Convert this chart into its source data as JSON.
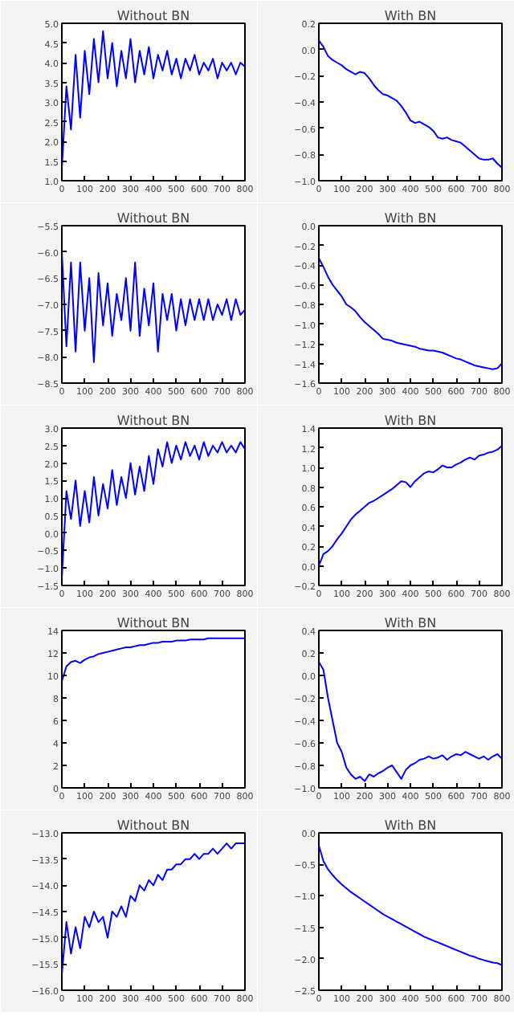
{
  "chart_data": [
    {
      "type": "line",
      "title": "Without BN",
      "color": "#0000ff",
      "xlim": [
        0,
        800
      ],
      "xticks": [
        0,
        100,
        200,
        300,
        400,
        500,
        600,
        700,
        800
      ],
      "ylim": [
        1.0,
        5.0
      ],
      "yticks": [
        {
          "value": 1.0,
          "label": "1.0"
        },
        1.5,
        {
          "value": 2.0,
          "label": "2.0"
        },
        2.5,
        {
          "value": 3.0,
          "label": "3.0"
        },
        3.5,
        {
          "value": 4.0,
          "label": "4.0"
        },
        4.5,
        {
          "value": 5.0,
          "label": "5.0"
        }
      ],
      "x": [
        0,
        20,
        40,
        60,
        80,
        100,
        120,
        140,
        160,
        180,
        200,
        220,
        240,
        260,
        280,
        300,
        320,
        340,
        360,
        380,
        400,
        420,
        440,
        460,
        480,
        500,
        520,
        540,
        560,
        580,
        600,
        620,
        640,
        660,
        680,
        700,
        720,
        740,
        760,
        780,
        800
      ],
      "values": [
        1.3,
        3.4,
        2.3,
        4.2,
        2.6,
        4.3,
        3.2,
        4.6,
        3.5,
        4.8,
        3.6,
        4.5,
        3.4,
        4.3,
        3.6,
        4.6,
        3.5,
        4.3,
        3.7,
        4.4,
        3.6,
        4.2,
        3.8,
        4.3,
        3.7,
        4.1,
        3.6,
        4.1,
        3.8,
        4.2,
        3.7,
        4.0,
        3.8,
        4.1,
        3.6,
        4.0,
        3.8,
        4.0,
        3.7,
        4.0,
        3.9
      ]
    },
    {
      "type": "line",
      "title": "With BN",
      "color": "#0000ff",
      "xlim": [
        0,
        800
      ],
      "xticks": [
        0,
        100,
        200,
        300,
        400,
        500,
        600,
        700,
        800
      ],
      "ylim": [
        -1.0,
        0.2
      ],
      "yticks": [
        {
          "value": -1.0,
          "label": "−1.0"
        },
        {
          "value": -0.8,
          "label": "−0.8"
        },
        {
          "value": -0.6,
          "label": "−0.6"
        },
        {
          "value": -0.4,
          "label": "−0.4"
        },
        {
          "value": -0.2,
          "label": "−0.2"
        },
        {
          "value": 0.0,
          "label": "0.0"
        },
        0.2
      ],
      "x": [
        0,
        20,
        40,
        60,
        80,
        100,
        120,
        140,
        160,
        180,
        200,
        220,
        240,
        260,
        280,
        300,
        320,
        340,
        360,
        380,
        400,
        420,
        440,
        460,
        480,
        500,
        520,
        540,
        560,
        580,
        600,
        620,
        640,
        660,
        680,
        700,
        720,
        740,
        760,
        780,
        800
      ],
      "values": [
        0.07,
        0.02,
        -0.05,
        -0.08,
        -0.1,
        -0.12,
        -0.15,
        -0.17,
        -0.19,
        -0.17,
        -0.18,
        -0.22,
        -0.27,
        -0.31,
        -0.34,
        -0.35,
        -0.37,
        -0.39,
        -0.43,
        -0.48,
        -0.54,
        -0.56,
        -0.55,
        -0.57,
        -0.59,
        -0.62,
        -0.67,
        -0.68,
        -0.67,
        -0.69,
        -0.7,
        -0.71,
        -0.74,
        -0.77,
        -0.8,
        -0.83,
        -0.84,
        -0.84,
        -0.83,
        -0.87,
        -0.9
      ]
    },
    {
      "type": "line",
      "title": "Without BN",
      "color": "#0000ff",
      "xlim": [
        0,
        800
      ],
      "xticks": [
        0,
        100,
        200,
        300,
        400,
        500,
        600,
        700,
        800
      ],
      "ylim": [
        -8.5,
        -5.5
      ],
      "yticks": [
        {
          "value": -8.5,
          "label": "−8.5"
        },
        {
          "value": -8.0,
          "label": "−8.0"
        },
        {
          "value": -7.5,
          "label": "−7.5"
        },
        {
          "value": -7.0,
          "label": "−7.0"
        },
        {
          "value": -6.5,
          "label": "−6.5"
        },
        {
          "value": -6.0,
          "label": "−6.0"
        },
        {
          "value": -5.5,
          "label": "−5.5"
        }
      ],
      "x": [
        0,
        20,
        40,
        60,
        80,
        100,
        120,
        140,
        160,
        180,
        200,
        220,
        240,
        260,
        280,
        300,
        320,
        340,
        360,
        380,
        400,
        420,
        440,
        460,
        480,
        500,
        520,
        540,
        560,
        580,
        600,
        620,
        640,
        660,
        680,
        700,
        720,
        740,
        760,
        780,
        800
      ],
      "values": [
        -6.0,
        -7.8,
        -6.2,
        -7.9,
        -6.2,
        -7.5,
        -6.5,
        -8.1,
        -6.4,
        -7.4,
        -6.6,
        -7.6,
        -6.8,
        -7.3,
        -6.5,
        -7.5,
        -6.2,
        -7.6,
        -6.7,
        -7.4,
        -6.6,
        -7.9,
        -6.8,
        -7.3,
        -6.8,
        -7.5,
        -6.9,
        -7.4,
        -6.9,
        -7.3,
        -6.9,
        -7.3,
        -6.9,
        -7.3,
        -7.0,
        -7.2,
        -6.9,
        -7.3,
        -6.9,
        -7.2,
        -7.1
      ]
    },
    {
      "type": "line",
      "title": "With BN",
      "color": "#0000ff",
      "xlim": [
        0,
        800
      ],
      "xticks": [
        0,
        100,
        200,
        300,
        400,
        500,
        600,
        700,
        800
      ],
      "ylim": [
        -1.6,
        0.0
      ],
      "yticks": [
        {
          "value": -1.6,
          "label": "−1.6"
        },
        {
          "value": -1.4,
          "label": "−1.4"
        },
        {
          "value": -1.2,
          "label": "−1.2"
        },
        {
          "value": -1.0,
          "label": "−1.0"
        },
        {
          "value": -0.8,
          "label": "−0.8"
        },
        {
          "value": -0.6,
          "label": "−0.6"
        },
        {
          "value": -0.4,
          "label": "−0.4"
        },
        {
          "value": -0.2,
          "label": "−0.2"
        },
        {
          "value": 0.0,
          "label": "0.0"
        }
      ],
      "x": [
        0,
        20,
        40,
        60,
        80,
        100,
        120,
        140,
        160,
        180,
        200,
        220,
        240,
        260,
        280,
        300,
        320,
        340,
        360,
        380,
        400,
        420,
        440,
        460,
        480,
        500,
        520,
        540,
        560,
        580,
        600,
        620,
        640,
        660,
        680,
        700,
        720,
        740,
        760,
        780,
        800
      ],
      "values": [
        -0.33,
        -0.42,
        -0.52,
        -0.6,
        -0.66,
        -0.72,
        -0.8,
        -0.83,
        -0.87,
        -0.93,
        -0.98,
        -1.02,
        -1.06,
        -1.1,
        -1.15,
        -1.16,
        -1.17,
        -1.19,
        -1.2,
        -1.21,
        -1.22,
        -1.23,
        -1.25,
        -1.26,
        -1.27,
        -1.27,
        -1.28,
        -1.29,
        -1.31,
        -1.33,
        -1.35,
        -1.36,
        -1.38,
        -1.4,
        -1.42,
        -1.43,
        -1.44,
        -1.45,
        -1.46,
        -1.45,
        -1.4
      ]
    },
    {
      "type": "line",
      "title": "Without BN",
      "color": "#0000ff",
      "xlim": [
        0,
        800
      ],
      "xticks": [
        0,
        100,
        200,
        300,
        400,
        500,
        600,
        700,
        800
      ],
      "ylim": [
        -1.5,
        3.0
      ],
      "yticks": [
        {
          "value": -1.5,
          "label": "−1.5"
        },
        {
          "value": -1.0,
          "label": "−1.0"
        },
        {
          "value": -0.5,
          "label": "−0.5"
        },
        {
          "value": 0.0,
          "label": "0.0"
        },
        0.5,
        {
          "value": 1.0,
          "label": "1.0"
        },
        1.5,
        {
          "value": 2.0,
          "label": "2.0"
        },
        2.5,
        {
          "value": 3.0,
          "label": "3.0"
        }
      ],
      "x": [
        0,
        20,
        40,
        60,
        80,
        100,
        120,
        140,
        160,
        180,
        200,
        220,
        240,
        260,
        280,
        300,
        320,
        340,
        360,
        380,
        400,
        420,
        440,
        460,
        480,
        500,
        520,
        540,
        560,
        580,
        600,
        620,
        640,
        660,
        680,
        700,
        720,
        740,
        760,
        780,
        800
      ],
      "values": [
        -1.3,
        1.2,
        0.4,
        1.5,
        0.2,
        1.2,
        0.3,
        1.6,
        0.5,
        1.4,
        0.7,
        1.8,
        0.8,
        1.6,
        1.0,
        2.0,
        1.1,
        1.9,
        1.2,
        2.2,
        1.4,
        2.4,
        1.9,
        2.6,
        2.0,
        2.5,
        2.1,
        2.6,
        2.2,
        2.5,
        2.1,
        2.6,
        2.2,
        2.5,
        2.3,
        2.6,
        2.3,
        2.5,
        2.3,
        2.6,
        2.4
      ]
    },
    {
      "type": "line",
      "title": "With BN",
      "color": "#0000ff",
      "xlim": [
        0,
        800
      ],
      "xticks": [
        0,
        100,
        200,
        300,
        400,
        500,
        600,
        700,
        800
      ],
      "ylim": [
        -0.2,
        1.4
      ],
      "yticks": [
        {
          "value": -0.2,
          "label": "−0.2"
        },
        {
          "value": 0.0,
          "label": "0.0"
        },
        0.2,
        0.4,
        0.6,
        0.8,
        {
          "value": 1.0,
          "label": "1.0"
        },
        1.2,
        1.4
      ],
      "x": [
        0,
        20,
        40,
        60,
        80,
        100,
        120,
        140,
        160,
        180,
        200,
        220,
        240,
        260,
        280,
        300,
        320,
        340,
        360,
        380,
        400,
        420,
        440,
        460,
        480,
        500,
        520,
        540,
        560,
        580,
        600,
        620,
        640,
        660,
        680,
        700,
        720,
        740,
        760,
        780,
        800
      ],
      "values": [
        0.0,
        0.12,
        0.15,
        0.2,
        0.27,
        0.33,
        0.4,
        0.47,
        0.52,
        0.56,
        0.6,
        0.64,
        0.66,
        0.69,
        0.72,
        0.75,
        0.78,
        0.82,
        0.86,
        0.85,
        0.8,
        0.86,
        0.9,
        0.94,
        0.96,
        0.95,
        0.98,
        1.02,
        1.0,
        1.0,
        1.03,
        1.05,
        1.08,
        1.1,
        1.08,
        1.12,
        1.13,
        1.15,
        1.16,
        1.18,
        1.22
      ]
    },
    {
      "type": "line",
      "title": "Without BN",
      "color": "#0000ff",
      "xlim": [
        0,
        800
      ],
      "xticks": [
        0,
        100,
        200,
        300,
        400,
        500,
        600,
        700,
        800
      ],
      "ylim": [
        0,
        14
      ],
      "yticks": [
        0,
        2,
        4,
        6,
        8,
        10,
        12,
        14
      ],
      "x": [
        0,
        20,
        40,
        60,
        80,
        100,
        120,
        140,
        160,
        180,
        200,
        220,
        240,
        260,
        280,
        300,
        320,
        340,
        360,
        380,
        400,
        420,
        440,
        460,
        480,
        500,
        520,
        540,
        560,
        580,
        600,
        620,
        640,
        660,
        680,
        700,
        720,
        740,
        760,
        780,
        800
      ],
      "values": [
        9.5,
        10.8,
        11.2,
        11.3,
        11.1,
        11.4,
        11.6,
        11.7,
        11.9,
        12.0,
        12.1,
        12.2,
        12.3,
        12.4,
        12.5,
        12.5,
        12.6,
        12.7,
        12.7,
        12.8,
        12.9,
        12.9,
        13.0,
        13.0,
        13.0,
        13.1,
        13.1,
        13.1,
        13.2,
        13.2,
        13.2,
        13.2,
        13.3,
        13.3,
        13.3,
        13.3,
        13.3,
        13.3,
        13.3,
        13.3,
        13.3
      ]
    },
    {
      "type": "line",
      "title": "With BN",
      "color": "#0000ff",
      "xlim": [
        0,
        800
      ],
      "xticks": [
        0,
        100,
        200,
        300,
        400,
        500,
        600,
        700,
        800
      ],
      "ylim": [
        -1.0,
        0.4
      ],
      "yticks": [
        {
          "value": -1.0,
          "label": "−1.0"
        },
        {
          "value": -0.8,
          "label": "−0.8"
        },
        {
          "value": -0.6,
          "label": "−0.6"
        },
        {
          "value": -0.4,
          "label": "−0.4"
        },
        {
          "value": -0.2,
          "label": "−0.2"
        },
        {
          "value": 0.0,
          "label": "0.0"
        },
        0.2,
        0.4
      ],
      "x": [
        0,
        20,
        40,
        60,
        80,
        100,
        120,
        140,
        160,
        180,
        200,
        220,
        240,
        260,
        280,
        300,
        320,
        340,
        360,
        380,
        400,
        420,
        440,
        460,
        480,
        500,
        520,
        540,
        560,
        580,
        600,
        620,
        640,
        660,
        680,
        700,
        720,
        740,
        760,
        780,
        800
      ],
      "values": [
        0.12,
        0.05,
        -0.2,
        -0.4,
        -0.6,
        -0.68,
        -0.82,
        -0.88,
        -0.92,
        -0.9,
        -0.94,
        -0.88,
        -0.9,
        -0.87,
        -0.85,
        -0.82,
        -0.8,
        -0.86,
        -0.92,
        -0.84,
        -0.8,
        -0.78,
        -0.75,
        -0.74,
        -0.72,
        -0.74,
        -0.73,
        -0.71,
        -0.75,
        -0.72,
        -0.7,
        -0.71,
        -0.68,
        -0.7,
        -0.72,
        -0.74,
        -0.72,
        -0.75,
        -0.72,
        -0.7,
        -0.74
      ]
    },
    {
      "type": "line",
      "title": "Without BN",
      "color": "#0000ff",
      "xlim": [
        0,
        800
      ],
      "xticks": [
        0,
        100,
        200,
        300,
        400,
        500,
        600,
        700,
        800
      ],
      "ylim": [
        -16.0,
        -13.0
      ],
      "yticks": [
        {
          "value": -16.0,
          "label": "−16.0"
        },
        {
          "value": -15.5,
          "label": "−15.5"
        },
        {
          "value": -15.0,
          "label": "−15.0"
        },
        {
          "value": -14.5,
          "label": "−14.5"
        },
        {
          "value": -14.0,
          "label": "−14.0"
        },
        {
          "value": -13.5,
          "label": "−13.5"
        },
        {
          "value": -13.0,
          "label": "−13.0"
        }
      ],
      "x": [
        0,
        20,
        40,
        60,
        80,
        100,
        120,
        140,
        160,
        180,
        200,
        220,
        240,
        260,
        280,
        300,
        320,
        340,
        360,
        380,
        400,
        420,
        440,
        460,
        480,
        500,
        520,
        540,
        560,
        580,
        600,
        620,
        640,
        660,
        680,
        700,
        720,
        740,
        760,
        780,
        800
      ],
      "values": [
        -15.7,
        -14.7,
        -15.3,
        -14.8,
        -15.2,
        -14.6,
        -14.8,
        -14.5,
        -14.7,
        -14.6,
        -15.0,
        -14.5,
        -14.6,
        -14.4,
        -14.6,
        -14.2,
        -14.3,
        -14.0,
        -14.1,
        -13.9,
        -14.0,
        -13.8,
        -13.9,
        -13.7,
        -13.7,
        -13.6,
        -13.6,
        -13.5,
        -13.5,
        -13.4,
        -13.5,
        -13.4,
        -13.4,
        -13.3,
        -13.4,
        -13.3,
        -13.2,
        -13.3,
        -13.2,
        -13.2,
        -13.2
      ]
    },
    {
      "type": "line",
      "title": "With BN",
      "color": "#0000ff",
      "xlim": [
        0,
        800
      ],
      "xticks": [
        0,
        100,
        200,
        300,
        400,
        500,
        600,
        700,
        800
      ],
      "ylim": [
        -2.5,
        0.0
      ],
      "yticks": [
        {
          "value": -2.5,
          "label": "−2.5"
        },
        {
          "value": -2.0,
          "label": "−2.0"
        },
        {
          "value": -1.5,
          "label": "−1.5"
        },
        {
          "value": -1.0,
          "label": "−1.0"
        },
        {
          "value": -0.5,
          "label": "−0.5"
        },
        {
          "value": 0.0,
          "label": "0.0"
        }
      ],
      "x": [
        0,
        20,
        40,
        60,
        80,
        100,
        120,
        140,
        160,
        180,
        200,
        220,
        240,
        260,
        280,
        300,
        320,
        340,
        360,
        380,
        400,
        420,
        440,
        460,
        480,
        500,
        520,
        540,
        560,
        580,
        600,
        620,
        640,
        660,
        680,
        700,
        720,
        740,
        760,
        780,
        800
      ],
      "values": [
        -0.2,
        -0.45,
        -0.58,
        -0.67,
        -0.75,
        -0.82,
        -0.88,
        -0.94,
        -0.99,
        -1.04,
        -1.09,
        -1.14,
        -1.19,
        -1.24,
        -1.29,
        -1.33,
        -1.37,
        -1.41,
        -1.45,
        -1.49,
        -1.53,
        -1.57,
        -1.61,
        -1.65,
        -1.68,
        -1.71,
        -1.74,
        -1.77,
        -1.8,
        -1.83,
        -1.86,
        -1.89,
        -1.92,
        -1.95,
        -1.97,
        -2.0,
        -2.02,
        -2.04,
        -2.06,
        -2.07,
        -2.1
      ]
    }
  ]
}
